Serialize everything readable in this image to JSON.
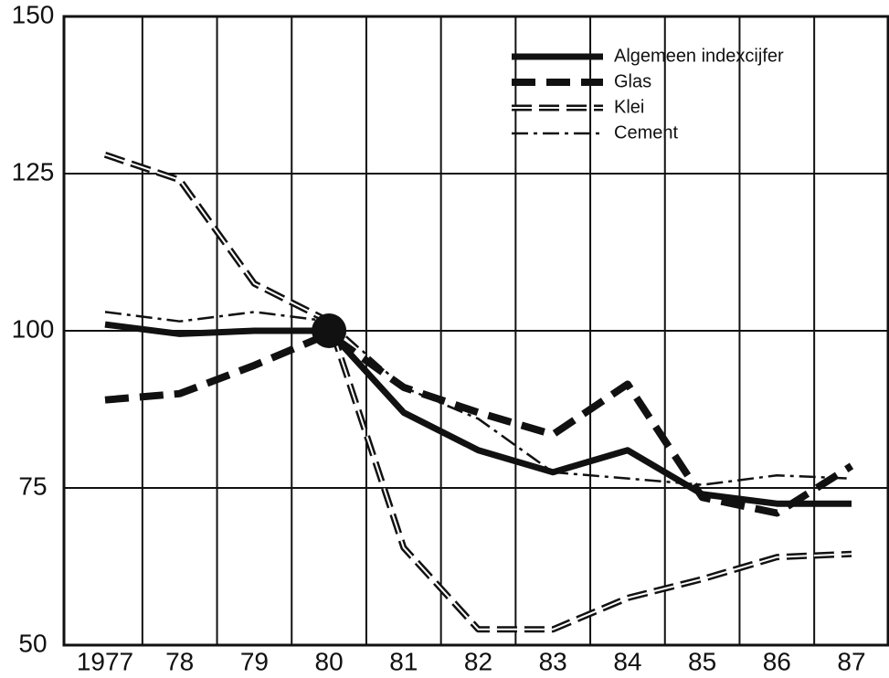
{
  "chart_data": {
    "type": "line",
    "categories": [
      "1977",
      "78",
      "79",
      "80",
      "81",
      "82",
      "83",
      "84",
      "85",
      "86",
      "87"
    ],
    "series": [
      {
        "name": "Algemeen indexcijfer",
        "color": "#111111",
        "linestyle": "solid",
        "values": [
          101,
          99.5,
          100,
          100,
          87,
          81,
          77.5,
          81,
          74,
          72.5,
          72.5
        ]
      },
      {
        "name": "Glas",
        "color": "#111111",
        "linestyle": "dashed",
        "values": [
          89,
          90,
          94.5,
          99.5,
          91,
          87,
          83.5,
          91.5,
          73.5,
          71,
          78.5
        ]
      },
      {
        "name": "Klei",
        "color": "#111111",
        "linestyle": "hatched",
        "values": [
          128,
          124,
          107.5,
          101.5,
          65.5,
          52.5,
          52.5,
          57.5,
          60.5,
          64,
          64.5
        ]
      },
      {
        "name": "Cement",
        "color": "#111111",
        "linestyle": "dashdot",
        "values": [
          103,
          101.5,
          103,
          101.5,
          91,
          86,
          77.5,
          76.5,
          75.5,
          77,
          76.5
        ]
      }
    ],
    "ylim": [
      50,
      150
    ],
    "yticks": [
      50,
      75,
      100,
      125,
      150
    ],
    "grid": true,
    "legend": "upper right"
  }
}
